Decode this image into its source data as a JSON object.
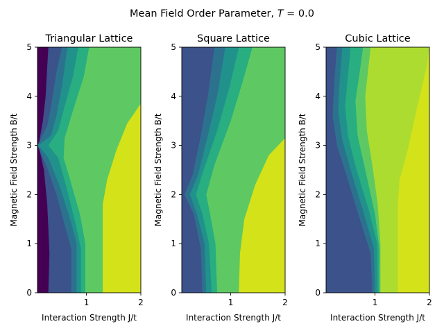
{
  "suptitle": "Mean Field Order Parameter, T = 0.0",
  "suptitle_parts": {
    "before": "Mean Field Order Parameter, ",
    "symbol": "T",
    "after": " = 0.0"
  },
  "colors": {
    "levels": [
      "#440154",
      "#472d7b",
      "#3b528b",
      "#2c728e",
      "#21918c",
      "#28ae80",
      "#5ec962",
      "#addc30",
      "#d4e21a"
    ]
  },
  "chart_data": [
    {
      "type": "contourf",
      "title": "Triangular Lattice",
      "xlabel": "Interaction Strength J/t",
      "ylabel": "Magnetic Field Strength B/t",
      "xlim": [
        0.1,
        2.0
      ],
      "ylim": [
        0,
        5
      ],
      "xticks": [
        1,
        2
      ],
      "yticks": [
        0,
        1,
        2,
        3,
        4,
        5
      ],
      "grid": false,
      "boundaries": [
        {
          "level_above": 2,
          "points": [
            [
              0.3,
              0
            ],
            [
              0.32,
              0.8
            ],
            [
              0.28,
              1.8
            ],
            [
              0.22,
              2.5
            ],
            [
              0.12,
              3.0
            ],
            [
              0.2,
              3.5
            ],
            [
              0.25,
              4.0
            ],
            [
              0.28,
              4.6
            ],
            [
              0.3,
              5
            ]
          ]
        },
        {
          "level_above": 3,
          "points": [
            [
              0.72,
              0
            ],
            [
              0.72,
              0.9
            ],
            [
              0.62,
              1.3
            ],
            [
              0.45,
              2.0
            ],
            [
              0.26,
              2.6
            ],
            [
              0.1,
              3.0
            ],
            [
              0.28,
              3.4
            ],
            [
              0.35,
              3.8
            ],
            [
              0.45,
              4.5
            ],
            [
              0.55,
              5
            ]
          ]
        },
        {
          "level_above": 4,
          "points": [
            [
              0.82,
              0
            ],
            [
              0.82,
              1.0
            ],
            [
              0.7,
              1.5
            ],
            [
              0.5,
              2.2
            ],
            [
              0.3,
              2.75
            ],
            [
              0.12,
              3.0
            ],
            [
              0.35,
              3.2
            ],
            [
              0.45,
              3.6
            ],
            [
              0.55,
              4.2
            ],
            [
              0.65,
              5
            ]
          ]
        },
        {
          "level_above": 5,
          "points": [
            [
              0.9,
              0
            ],
            [
              0.9,
              0.9
            ],
            [
              0.78,
              1.5
            ],
            [
              0.62,
              2.2
            ],
            [
              0.48,
              2.75
            ],
            [
              0.3,
              3.0
            ],
            [
              0.48,
              3.3
            ],
            [
              0.6,
              3.8
            ],
            [
              0.75,
              4.4
            ],
            [
              0.85,
              5
            ]
          ]
        },
        {
          "level_above": 6,
          "points": [
            [
              0.98,
              0
            ],
            [
              0.98,
              1.0
            ],
            [
              0.88,
              1.6
            ],
            [
              0.7,
              2.3
            ],
            [
              0.58,
              2.75
            ],
            [
              0.6,
              3.15
            ],
            [
              0.75,
              3.7
            ],
            [
              0.95,
              4.4
            ],
            [
              1.05,
              5
            ]
          ]
        },
        {
          "level_above": 8,
          "points": [
            [
              1.3,
              0
            ],
            [
              1.3,
              1.8
            ],
            [
              1.38,
              2.3
            ],
            [
              1.55,
              2.9
            ],
            [
              1.75,
              3.45
            ],
            [
              2.0,
              3.85
            ]
          ]
        }
      ]
    },
    {
      "type": "contourf",
      "title": "Square Lattice",
      "xlabel": "Interaction Strength J/t",
      "ylabel": "Magnetic Field Strength B/t",
      "xlim": [
        0.1,
        2.0
      ],
      "ylim": [
        0,
        5
      ],
      "xticks": [
        1,
        2
      ],
      "yticks": [
        0,
        1,
        2,
        3,
        4,
        5
      ],
      "grid": false,
      "boundaries": [
        {
          "level_above": 3,
          "points": [
            [
              0.48,
              0
            ],
            [
              0.45,
              0.9
            ],
            [
              0.32,
              1.6
            ],
            [
              0.15,
              2.0
            ],
            [
              0.3,
              2.4
            ],
            [
              0.45,
              3.2
            ],
            [
              0.58,
              4.0
            ],
            [
              0.7,
              5
            ]
          ]
        },
        {
          "level_above": 4,
          "points": [
            [
              0.55,
              0
            ],
            [
              0.52,
              1.0
            ],
            [
              0.38,
              1.6
            ],
            [
              0.25,
              2.0
            ],
            [
              0.4,
              2.4
            ],
            [
              0.58,
              3.2
            ],
            [
              0.75,
              4.0
            ],
            [
              0.9,
              5
            ]
          ]
        },
        {
          "level_above": 5,
          "points": [
            [
              0.65,
              0
            ],
            [
              0.6,
              1.0
            ],
            [
              0.48,
              1.6
            ],
            [
              0.36,
              2.0
            ],
            [
              0.5,
              2.5
            ],
            [
              0.75,
              3.3
            ],
            [
              0.98,
              4.2
            ],
            [
              1.15,
              5
            ]
          ]
        },
        {
          "level_above": 6,
          "points": [
            [
              0.75,
              0
            ],
            [
              0.72,
              1.0
            ],
            [
              0.62,
              1.6
            ],
            [
              0.55,
              2.0
            ],
            [
              0.7,
              2.6
            ],
            [
              1.0,
              3.5
            ],
            [
              1.22,
              4.3
            ],
            [
              1.4,
              5
            ]
          ]
        },
        {
          "level_above": 8,
          "points": [
            [
              1.15,
              0
            ],
            [
              1.17,
              0.8
            ],
            [
              1.25,
              1.5
            ],
            [
              1.45,
              2.2
            ],
            [
              1.7,
              2.8
            ],
            [
              2.0,
              3.15
            ]
          ]
        }
      ]
    },
    {
      "type": "contourf",
      "title": "Cubic Lattice",
      "xlabel": "Interaction Strength J/t",
      "ylabel": "Magnetic Field Strength B/t",
      "xlim": [
        0.1,
        2.0
      ],
      "ylim": [
        0,
        5
      ],
      "xticks": [
        1,
        2
      ],
      "yticks": [
        0,
        1,
        2,
        3,
        4,
        5
      ],
      "grid": false,
      "boundaries": [
        {
          "level_above": 3,
          "points": [
            [
              0.95,
              0
            ],
            [
              0.92,
              0.8
            ],
            [
              0.72,
              1.5
            ],
            [
              0.5,
              2.3
            ],
            [
              0.3,
              3.0
            ],
            [
              0.22,
              3.6
            ],
            [
              0.25,
              4.3
            ],
            [
              0.3,
              5
            ]
          ]
        },
        {
          "level_above": 4,
          "points": [
            [
              1.0,
              0
            ],
            [
              0.98,
              0.9
            ],
            [
              0.8,
              1.6
            ],
            [
              0.58,
              2.4
            ],
            [
              0.4,
              3.1
            ],
            [
              0.32,
              3.7
            ],
            [
              0.35,
              4.3
            ],
            [
              0.4,
              5
            ]
          ]
        },
        {
          "level_above": 5,
          "points": [
            [
              1.05,
              0
            ],
            [
              1.04,
              1.0
            ],
            [
              0.88,
              1.7
            ],
            [
              0.66,
              2.5
            ],
            [
              0.5,
              3.2
            ],
            [
              0.45,
              3.8
            ],
            [
              0.5,
              4.4
            ],
            [
              0.55,
              5
            ]
          ]
        },
        {
          "level_above": 6,
          "points": [
            [
              1.08,
              0
            ],
            [
              1.08,
              0.9
            ],
            [
              1.0,
              1.6
            ],
            [
              0.82,
              2.5
            ],
            [
              0.68,
              3.2
            ],
            [
              0.64,
              3.9
            ],
            [
              0.72,
              4.5
            ],
            [
              0.78,
              5
            ]
          ]
        },
        {
          "level_above": 7,
          "points": [
            [
              1.1,
              0
            ],
            [
              1.1,
              1.0
            ],
            [
              1.05,
              1.8
            ],
            [
              0.95,
              2.6
            ],
            [
              0.85,
              3.3
            ],
            [
              0.82,
              4.0
            ],
            [
              0.88,
              4.6
            ],
            [
              0.92,
              5
            ]
          ]
        },
        {
          "level_above": 8,
          "points": [
            [
              1.42,
              0
            ],
            [
              1.42,
              1.8
            ],
            [
              1.45,
              2.3
            ],
            [
              1.6,
              2.9
            ],
            [
              1.78,
              3.8
            ],
            [
              1.95,
              4.6
            ],
            [
              2.0,
              5
            ]
          ]
        }
      ]
    }
  ]
}
